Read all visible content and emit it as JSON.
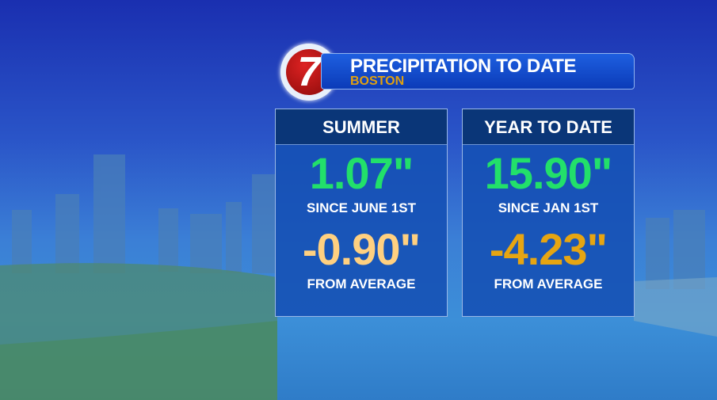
{
  "logo": {
    "text": "7"
  },
  "header": {
    "title": "PRECIPITATION TO DATE",
    "location": "BOSTON"
  },
  "panels": [
    {
      "heading": "SUMMER",
      "total": "1.07\"",
      "total_label": "SINCE JUNE 1ST",
      "departure": "-0.90\"",
      "departure_label": "FROM AVERAGE"
    },
    {
      "heading": "YEAR TO DATE",
      "total": "15.90\"",
      "total_label": "SINCE JAN 1ST",
      "departure": "-4.23\"",
      "departure_label": "FROM AVERAGE"
    }
  ],
  "colors": {
    "total": "#22e06a",
    "summer_departure": "#ffd080",
    "ytd_departure": "#e6a512"
  }
}
